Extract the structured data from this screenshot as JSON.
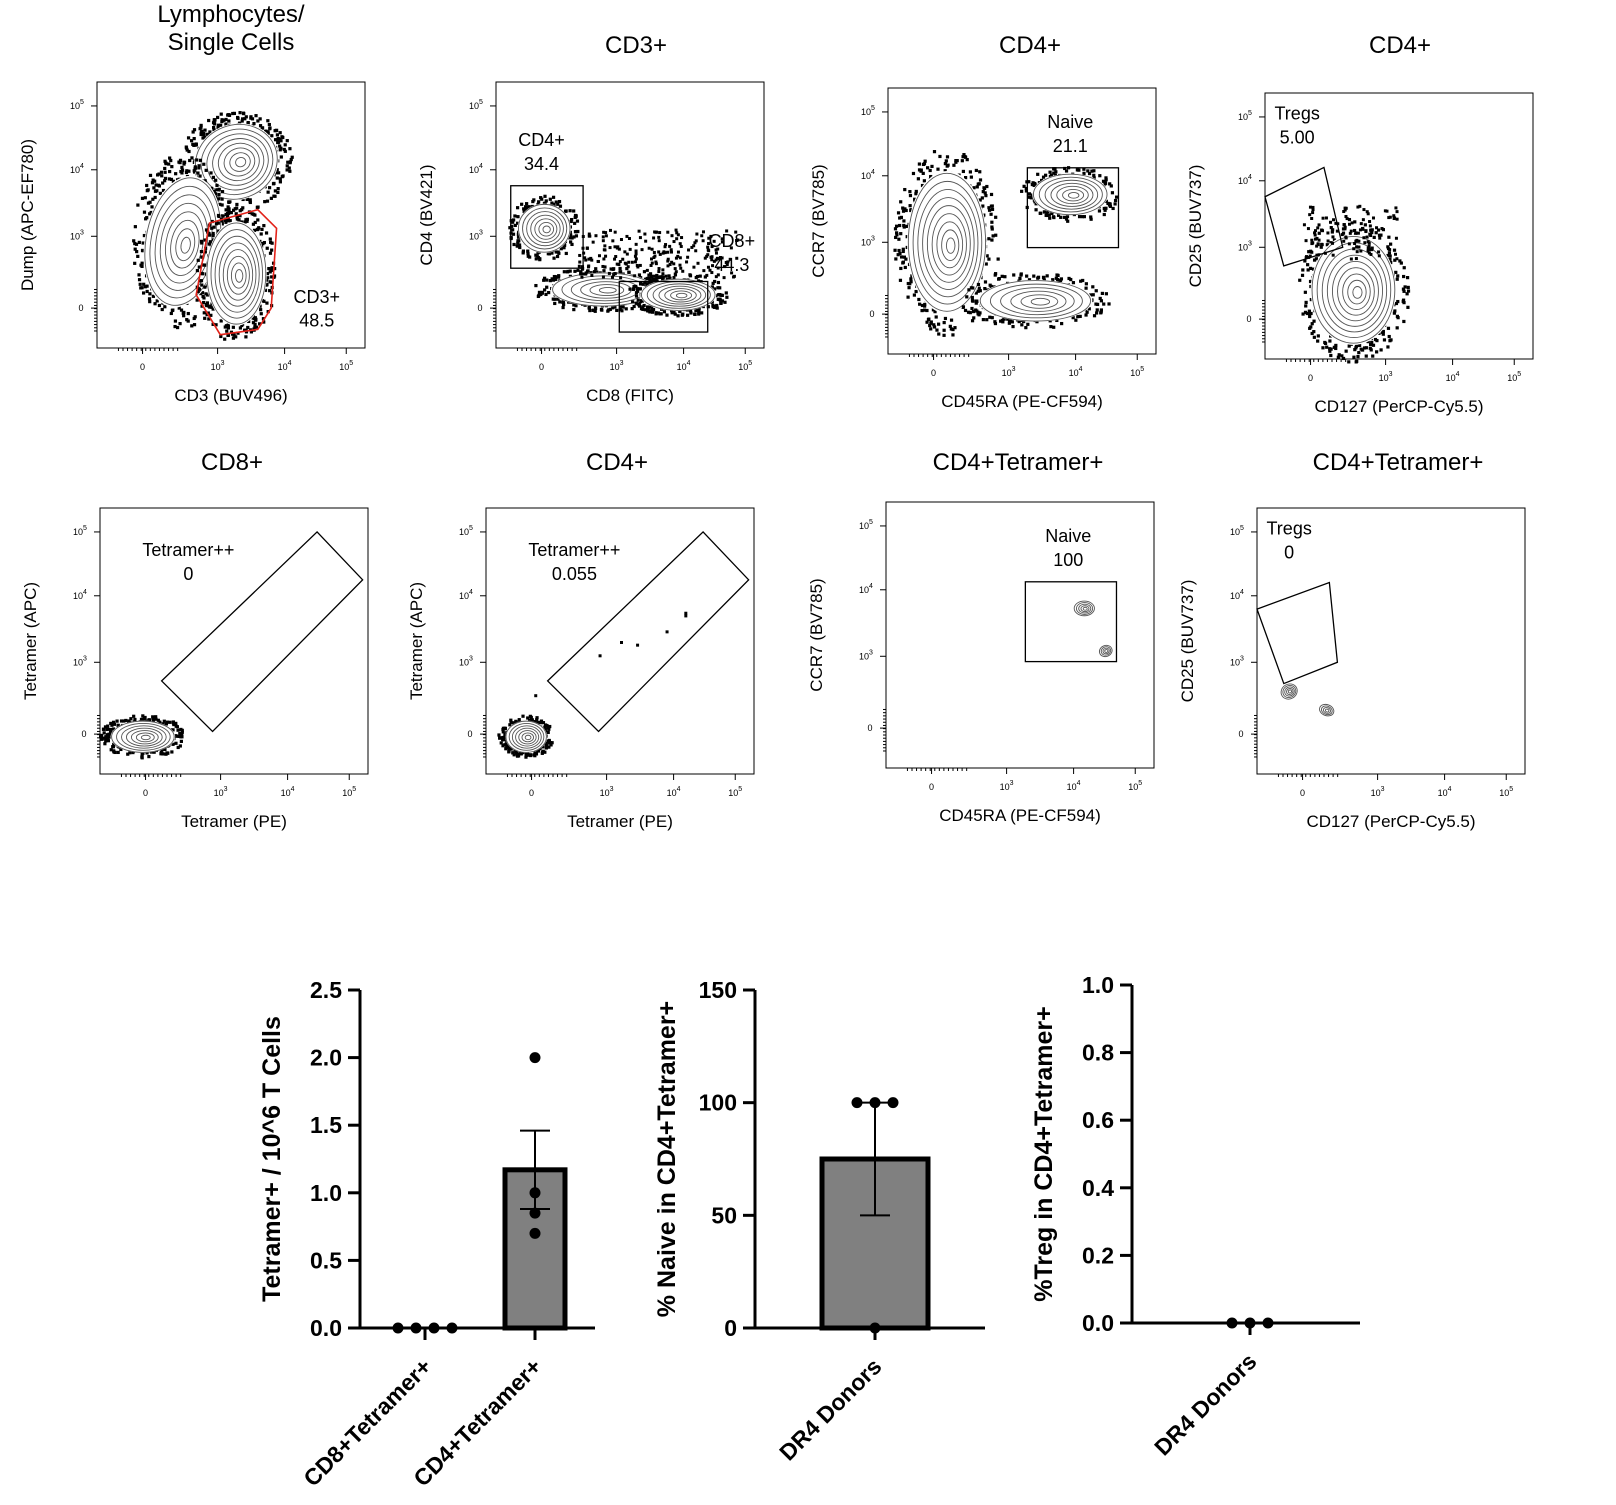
{
  "colors": {
    "axis": "#000000",
    "gate": "#000000",
    "highlight_gate": "#e2231a",
    "contour": "#555555",
    "dots": "#000000",
    "bar_fill": "#808080"
  },
  "chart_data": [
    {
      "type": "scatter",
      "subtype": "flow-contour",
      "title": "Lymphocytes/\nSingle Cells",
      "xlabel": "CD3 (BUV496)",
      "ylabel": "Dump (APC-EF780)",
      "gates": [
        {
          "name": "CD3+",
          "value": "48.5",
          "color": "red"
        }
      ]
    },
    {
      "type": "scatter",
      "subtype": "flow-contour",
      "title": "CD3+",
      "xlabel": "CD8 (FITC)",
      "ylabel": "CD4 (BV421)",
      "gates": [
        {
          "name": "CD4+",
          "value": "34.4"
        },
        {
          "name": "CD8+",
          "value": "44.3"
        }
      ]
    },
    {
      "type": "scatter",
      "subtype": "flow-contour",
      "title": "CD4+",
      "xlabel": "CD45RA (PE-CF594)",
      "ylabel": "CCR7 (BV785)",
      "gates": [
        {
          "name": "Naive",
          "value": "21.1"
        }
      ]
    },
    {
      "type": "scatter",
      "subtype": "flow-contour",
      "title": "CD4+",
      "xlabel": "CD127 (PerCP-Cy5.5)",
      "ylabel": "CD25 (BUV737)",
      "gates": [
        {
          "name": "Tregs",
          "value": "5.00"
        }
      ]
    },
    {
      "type": "scatter",
      "subtype": "flow-contour",
      "title": "CD8+",
      "xlabel": "Tetramer (PE)",
      "ylabel": "Tetramer (APC)",
      "gates": [
        {
          "name": "Tetramer++",
          "value": "0"
        }
      ]
    },
    {
      "type": "scatter",
      "subtype": "flow-contour",
      "title": "CD4+",
      "xlabel": "Tetramer (PE)",
      "ylabel": "Tetramer (APC)",
      "gates": [
        {
          "name": "Tetramer++",
          "value": "0.055"
        }
      ]
    },
    {
      "type": "scatter",
      "subtype": "flow-contour",
      "title": "CD4+Tetramer+",
      "xlabel": "CD45RA (PE-CF594)",
      "ylabel": "CCR7 (BV785)",
      "gates": [
        {
          "name": "Naive",
          "value": "100"
        }
      ]
    },
    {
      "type": "scatter",
      "subtype": "flow-contour",
      "title": "CD4+Tetramer+",
      "xlabel": "CD127 (PerCP-Cy5.5)",
      "ylabel": "CD25 (BUV737)",
      "gates": [
        {
          "name": "Tregs",
          "value": "0"
        }
      ]
    },
    {
      "type": "bar",
      "ylabel": "Tetramer+ / 10^6 T Cells",
      "ylim": [
        0,
        2.5
      ],
      "yticks": [
        "0.0",
        "0.5",
        "1.0",
        "1.5",
        "2.0",
        "2.5"
      ],
      "categories": [
        "CD8+Tetramer+",
        "CD4+Tetramer+"
      ],
      "values": [
        0,
        1.17
      ],
      "sem": [
        0,
        0.29
      ],
      "points": [
        [
          0,
          0,
          0,
          0
        ],
        [
          2.0,
          1.0,
          0.85,
          0.7
        ]
      ]
    },
    {
      "type": "bar",
      "ylabel": "% Naive in CD4+Tetramer+",
      "ylim": [
        0,
        150
      ],
      "yticks": [
        "0",
        "50",
        "100",
        "150"
      ],
      "categories": [
        "DR4 Donors"
      ],
      "values": [
        75
      ],
      "sem": [
        25
      ],
      "points": [
        [
          100,
          100,
          100,
          0
        ]
      ]
    },
    {
      "type": "bar",
      "ylabel": "%Treg in CD4+Tetramer+",
      "ylim": [
        0,
        1.0
      ],
      "yticks": [
        "0.0",
        "0.2",
        "0.4",
        "0.6",
        "0.8",
        "1.0"
      ],
      "categories": [
        "DR4 Donors"
      ],
      "values": [
        0
      ],
      "sem": [
        0
      ],
      "points": [
        [
          0,
          0,
          0
        ]
      ]
    }
  ]
}
